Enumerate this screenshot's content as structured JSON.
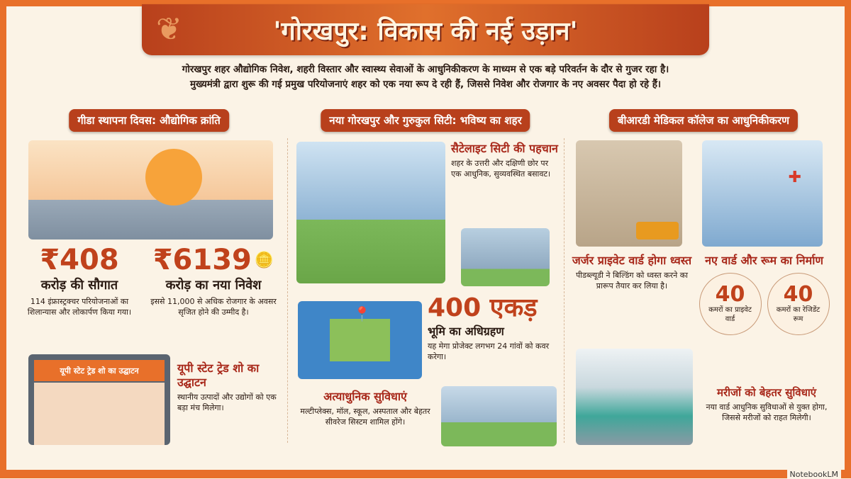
{
  "title": "'गोरखपुर: विकास की नई उड़ान'",
  "intro": [
    "गोरखपुर शहर औद्योगिक निवेश, शहरी विस्तार और स्वास्थ्य सेवाओं के आधुनिकीकरण के माध्यम से एक बड़े परिवर्तन के दौर से गुजर रहा है।",
    "मुख्यमंत्री द्वारा शुरू की गई प्रमुख परियोजनाएं शहर को एक नया रूप दे रही हैं, जिससे निवेश और रोजगार के नए अवसर पैदा हो रहे हैं।"
  ],
  "colors": {
    "accent": "#e8702a",
    "header": "#b8401c",
    "highlight": "#c0421c"
  },
  "sections": [
    {
      "title": "गीडा स्थापना दिवस: औद्योगिक क्रांति",
      "stats": [
        {
          "value": "₹408",
          "label": "करोड़ की सौगात",
          "desc": "114 इंफ्रास्ट्रक्चर परियोजनाओं का शिलान्यास और लोकार्पण किया गया।"
        },
        {
          "value": "₹6139",
          "label": "करोड़ का नया निवेश",
          "desc": "इससे 11,000 से अधिक रोजगार के अवसर सृजित होने की उम्मीद है।"
        }
      ],
      "gate_sign": "यूपी स्टेट ट्रेड शो का उद्घाटन",
      "trade_title": "यूपी स्टेट ट्रेड शो का उद्घाटन",
      "trade_desc": "स्थानीय उत्पादों और उद्योगों को एक बड़ा मंच मिलेगा।"
    },
    {
      "title": "नया गोरखपुर और गुरुकुल सिटी: भविष्य का शहर",
      "satellite_title": "सैटेलाइट सिटी की पहचान",
      "satellite_desc": "शहर के उत्तरी और दक्षिणी छोर पर एक आधुनिक, सुव्यवस्थित बसावट।",
      "land_value": "400 एकड़",
      "land_label": "भूमि का अधिग्रहण",
      "land_desc": "यह मेगा प्रोजेक्ट लगभग 24 गांवों को कवर करेगा।",
      "facilities_title": "अत्याधुनिक सुविधाएं",
      "facilities_desc": "मल्टीप्लेक्स, मॉल, स्कूल, अस्पताल और बेहतर सीवरेज सिस्टम शामिल होंगे।"
    },
    {
      "title": "बीआरडी मेडिकल कॉलेज का आधुनिकीकरण",
      "demolish_title": "जर्जर प्राइवेट वार्ड होगा ध्वस्त",
      "demolish_desc": "पीडब्ल्यूडी ने बिल्डिंग को ध्वस्त करने का प्रारूप तैयार कर लिया है।",
      "new_title": "नए वार्ड और रूम का निर्माण",
      "circles": [
        {
          "value": "40",
          "label": "कमरों का प्राइवेट वार्ड"
        },
        {
          "value": "40",
          "label": "कमरों का रेजिडेंट रूम"
        }
      ],
      "patients_title": "मरीजों को बेहतर सुविधाएं",
      "patients_desc": "नया वार्ड आधुनिक सुविधाओं से युक्त होगा, जिससे मरीजों को राहत मिलेगी।"
    }
  ],
  "watermark": "NotebookLM"
}
